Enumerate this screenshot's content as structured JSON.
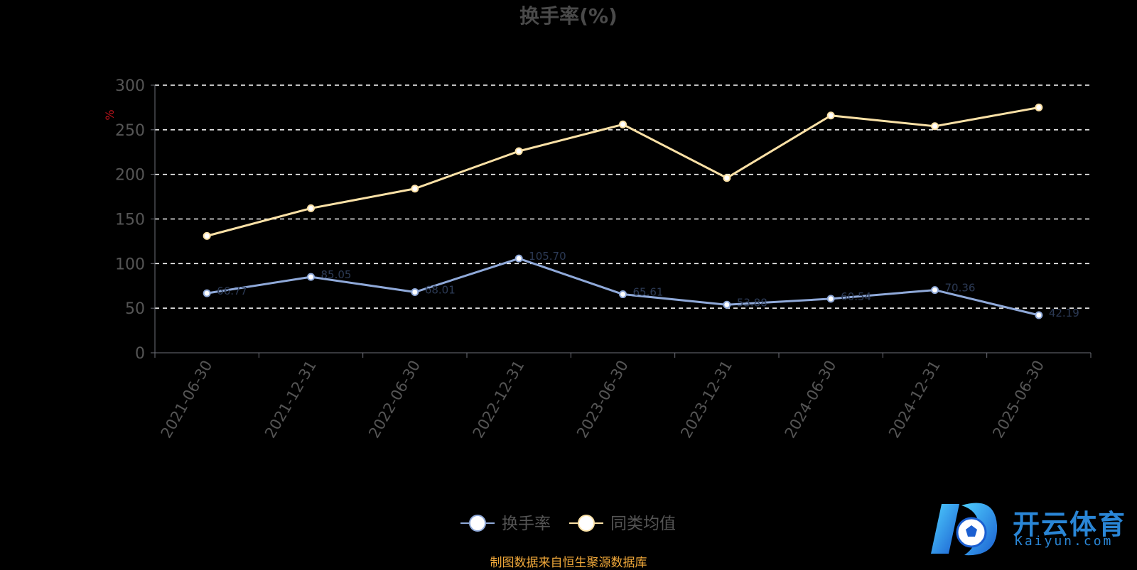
{
  "chart_data": {
    "type": "line",
    "title": "换手率(%)",
    "ylabel": "%",
    "ylim": [
      0,
      300
    ],
    "yticks": [
      0,
      50,
      100,
      150,
      200,
      250,
      300
    ],
    "grid": true,
    "legend_position": "bottom-center",
    "categories": [
      "2021-06-30",
      "2021-12-31",
      "2022-06-30",
      "2022-12-31",
      "2023-06-30",
      "2023-12-31",
      "2024-06-30",
      "2024-12-31",
      "2025-06-30"
    ],
    "series": [
      {
        "name": "换手率",
        "color": "#8fa9d9",
        "values": [
          66.77,
          85.05,
          68.01,
          105.7,
          65.61,
          53.88,
          60.54,
          70.36,
          42.19
        ]
      },
      {
        "name": "同类均值",
        "color": "#fbe1a6",
        "values": [
          131,
          162,
          184,
          226,
          256,
          196,
          266,
          254,
          275
        ]
      }
    ]
  },
  "source_note": "制图数据来自恒生聚源数据库",
  "watermark": {
    "brand": "开云体育",
    "domain": "Kaiyun.com"
  }
}
